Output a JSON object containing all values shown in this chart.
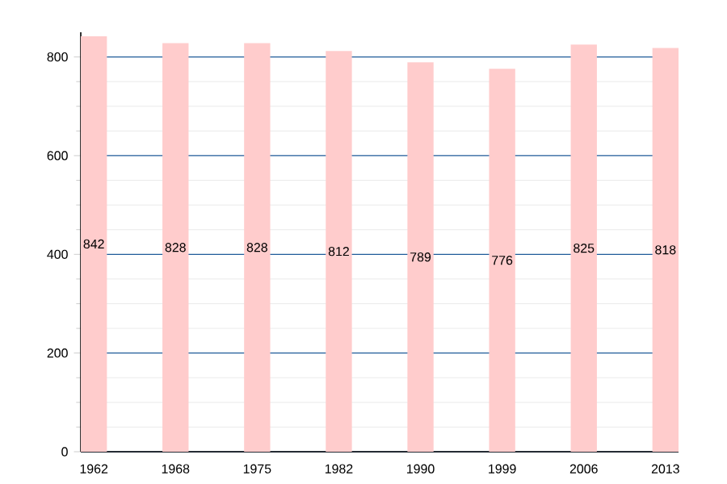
{
  "chart_data": {
    "type": "bar",
    "categories": [
      "1962",
      "1968",
      "1975",
      "1982",
      "1990",
      "1999",
      "2006",
      "2013"
    ],
    "values": [
      842,
      828,
      828,
      812,
      789,
      776,
      825,
      818
    ],
    "color": "#ffcccc",
    "ylim": [
      0,
      850
    ],
    "yticks": [
      0,
      200,
      400,
      600,
      800
    ],
    "grid": "y",
    "data_labels": true
  }
}
